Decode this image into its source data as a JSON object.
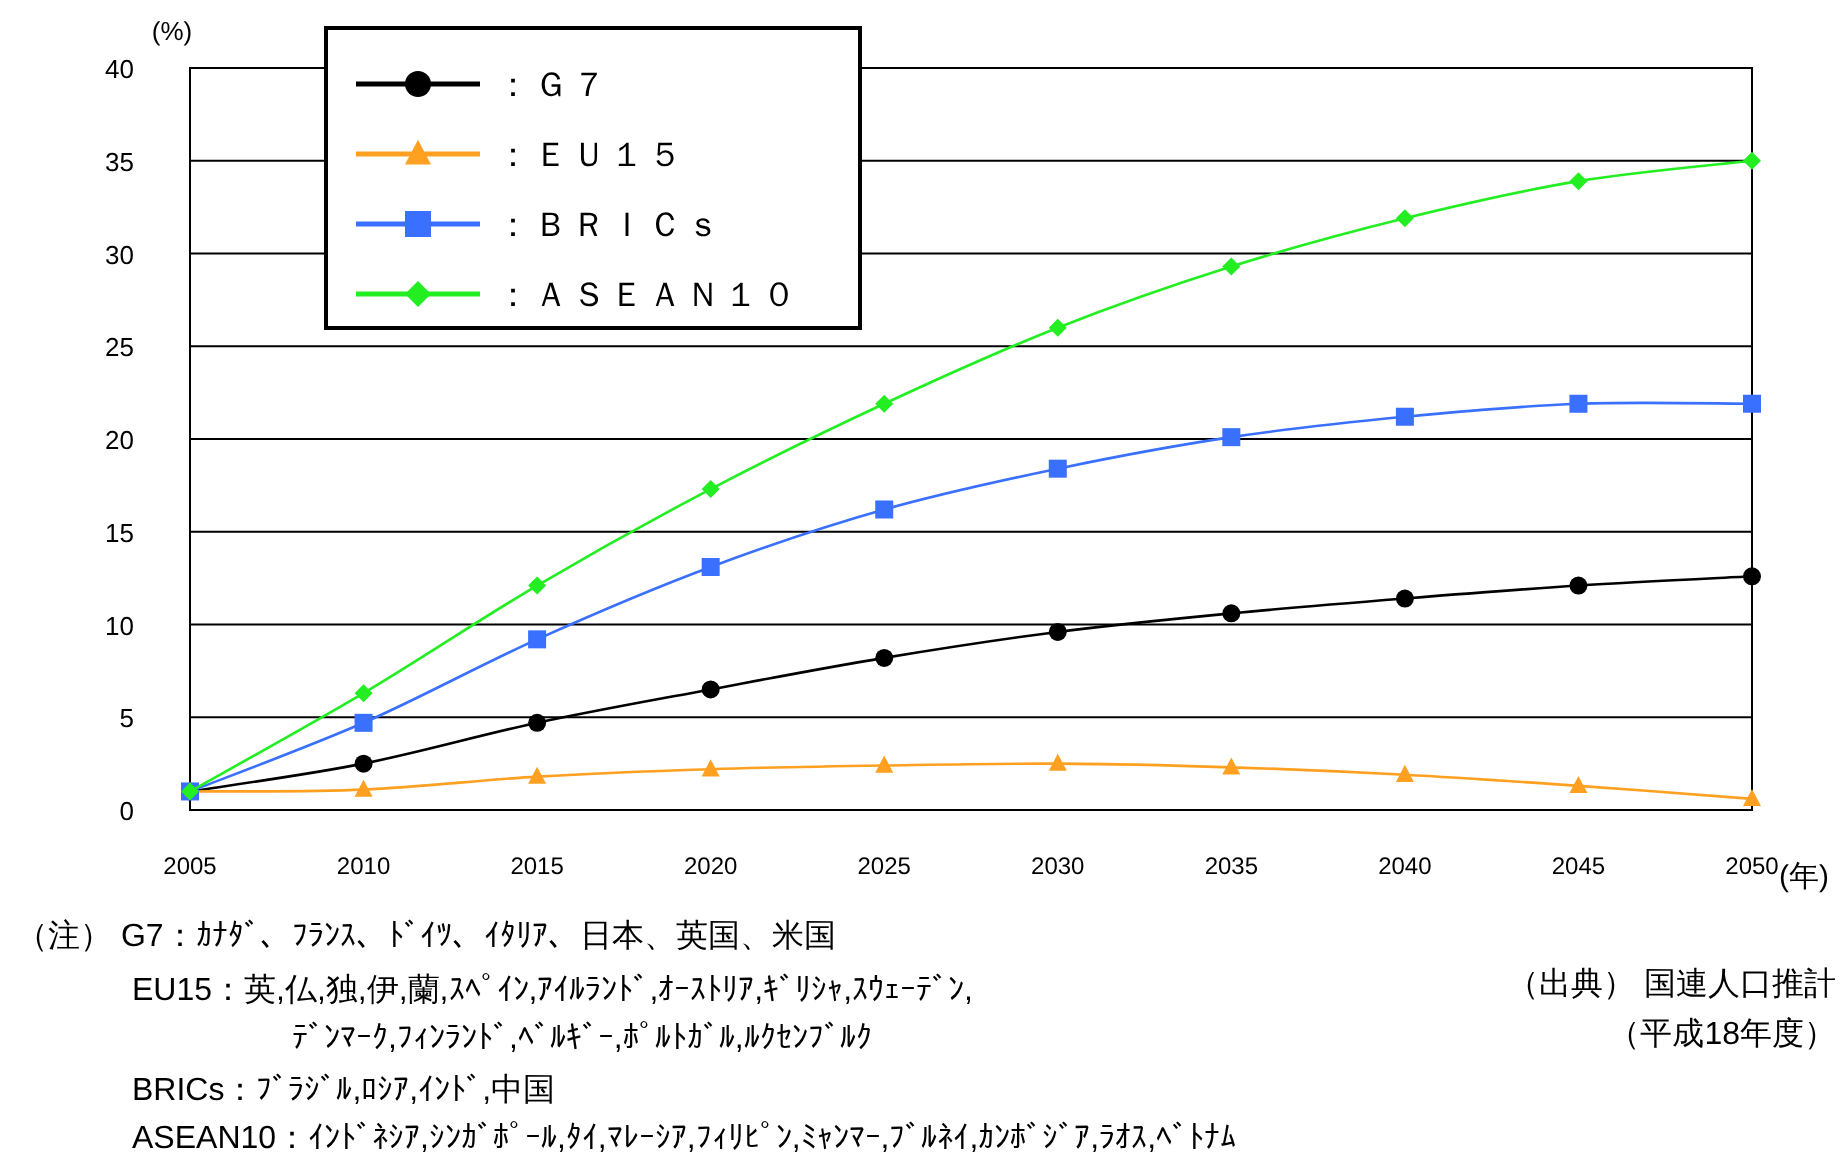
{
  "chart_data": {
    "type": "line",
    "ylabel": "(%)",
    "xlabel": "(年)",
    "x": [
      2005,
      2010,
      2015,
      2020,
      2025,
      2030,
      2035,
      2040,
      2045,
      2050
    ],
    "xlim": [
      2005,
      2050
    ],
    "xticks": [
      2005,
      2010,
      2015,
      2020,
      2025,
      2030,
      2035,
      2040,
      2045,
      2050
    ],
    "ylim": [
      0,
      40
    ],
    "yticks": [
      0,
      5,
      10,
      15,
      20,
      25,
      30,
      35,
      40
    ],
    "grid": "y",
    "legend": "top left",
    "series": [
      {
        "name": "：Ｇ７",
        "color": "#000000",
        "marker": "circle",
        "values": [
          1,
          2.5,
          4.7,
          6.5,
          8.2,
          9.6,
          10.6,
          11.4,
          12.1,
          12.6
        ]
      },
      {
        "name": "：ＥＵ１５",
        "color": "#ffa020",
        "marker": "triangle",
        "values": [
          1,
          1.1,
          1.8,
          2.2,
          2.4,
          2.5,
          2.3,
          1.9,
          1.3,
          0.6
        ]
      },
      {
        "name": "：ＢＲＩＣｓ",
        "color": "#3a70ff",
        "marker": "square",
        "values": [
          1,
          4.7,
          9.2,
          13.1,
          16.2,
          18.4,
          20.1,
          21.2,
          21.9,
          21.9
        ]
      },
      {
        "name": "：ＡＳＥＡＮ１０",
        "color": "#22ee22",
        "marker": "diamond",
        "values": [
          1,
          6.3,
          12.1,
          17.3,
          21.9,
          26,
          29.3,
          31.9,
          33.9,
          35
        ]
      }
    ],
    "annotations": [
      "（注） G7：ｶﾅﾀﾞ、ﾌﾗﾝｽ、ﾄﾞｲﾂ、ｲﾀﾘｱ、日本、英国、米国",
      "EU15：英,仏,独,伊,蘭,ｽﾍﾟｲﾝ,ｱｲﾙﾗﾝﾄﾞ,ｵｰｽﾄﾘｱ,ｷﾞﾘｼｬ,ｽｳｪｰﾃﾞﾝ,",
      "ﾃﾞﾝﾏｰｸ,ﾌｨﾝﾗﾝﾄﾞ,ﾍﾞﾙｷﾞｰ,ﾎﾟﾙﾄｶﾞﾙ,ﾙｸｾﾝﾌﾞﾙｸ",
      "BRICs：ﾌﾞﾗｼﾞﾙ,ﾛｼｱ,ｲﾝﾄﾞ,中国",
      "ASEAN10：ｲﾝﾄﾞﾈｼｱ,ｼﾝｶﾞﾎﾟｰﾙ,ﾀｲ,ﾏﾚｰｼｱ,ﾌｨﾘﾋﾟﾝ,ﾐｬﾝﾏｰ,ﾌﾞﾙﾈｲ,ｶﾝﾎﾞｼﾞｱ,ﾗｵｽ,ﾍﾞﾄﾅﾑ",
      "（出典） 国連人口推計",
      "（平成18年度）"
    ]
  }
}
